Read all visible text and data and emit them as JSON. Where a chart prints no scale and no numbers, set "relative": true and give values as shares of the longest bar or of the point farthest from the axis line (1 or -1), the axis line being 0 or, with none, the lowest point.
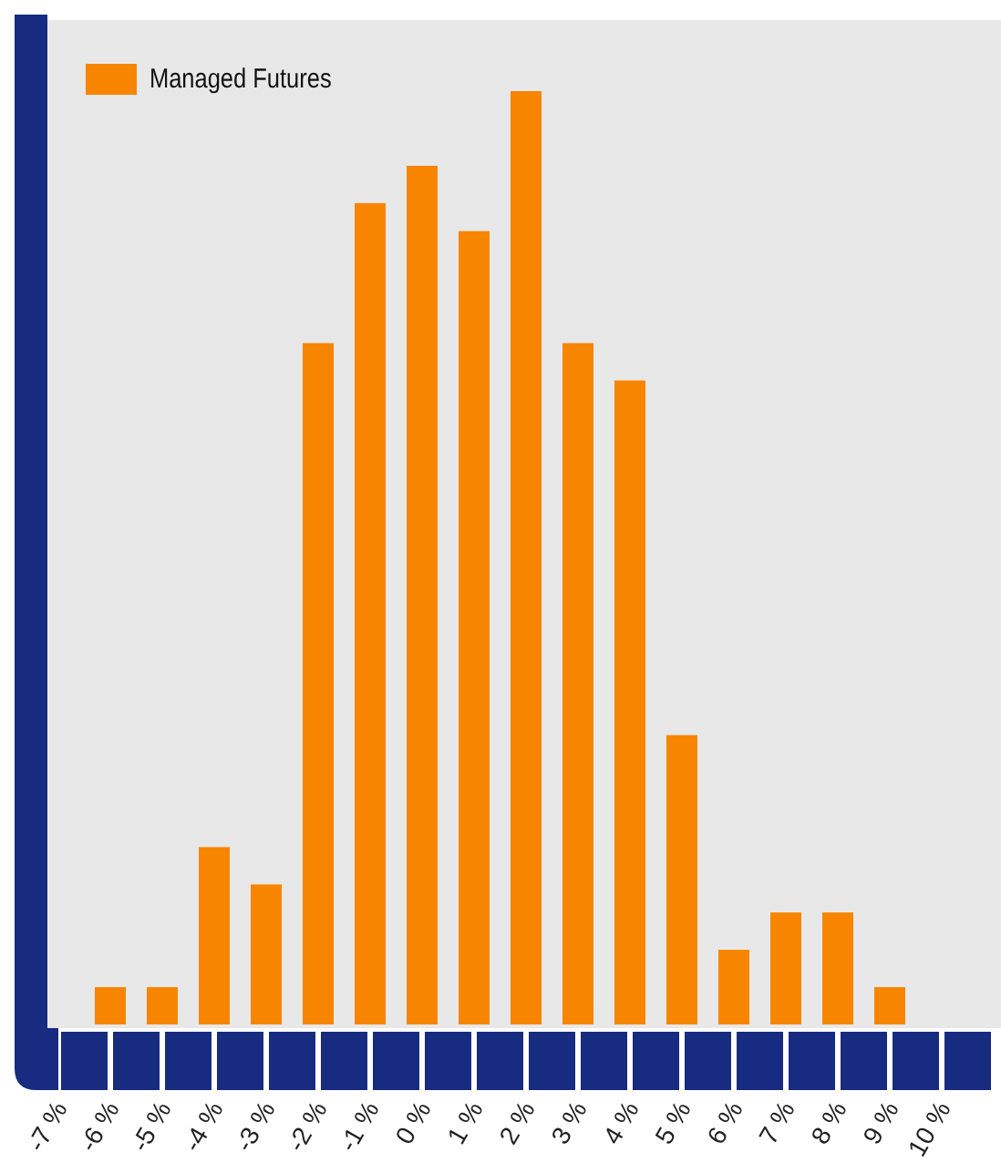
{
  "chart_data": {
    "type": "bar",
    "relative": true,
    "categories": [
      "-7 %",
      "-6 %",
      "-5 %",
      "-4 %",
      "-3 %",
      "-2 %",
      "-1 %",
      "0 %",
      "1 %",
      "2 %",
      "3 %",
      "4 %",
      "5 %",
      "6 %",
      "7 %",
      "8 %",
      "9 %",
      "10 %"
    ],
    "series": [
      {
        "name": "Managed Futures",
        "color": "#f78500",
        "values": [
          0,
          0.04,
          0.04,
          0.19,
          0.15,
          0.73,
          0.88,
          0.92,
          0.85,
          1,
          0.73,
          0.69,
          0.31,
          0.08,
          0.12,
          0.12,
          0.04,
          0
        ]
      }
    ],
    "legend": "top left"
  }
}
